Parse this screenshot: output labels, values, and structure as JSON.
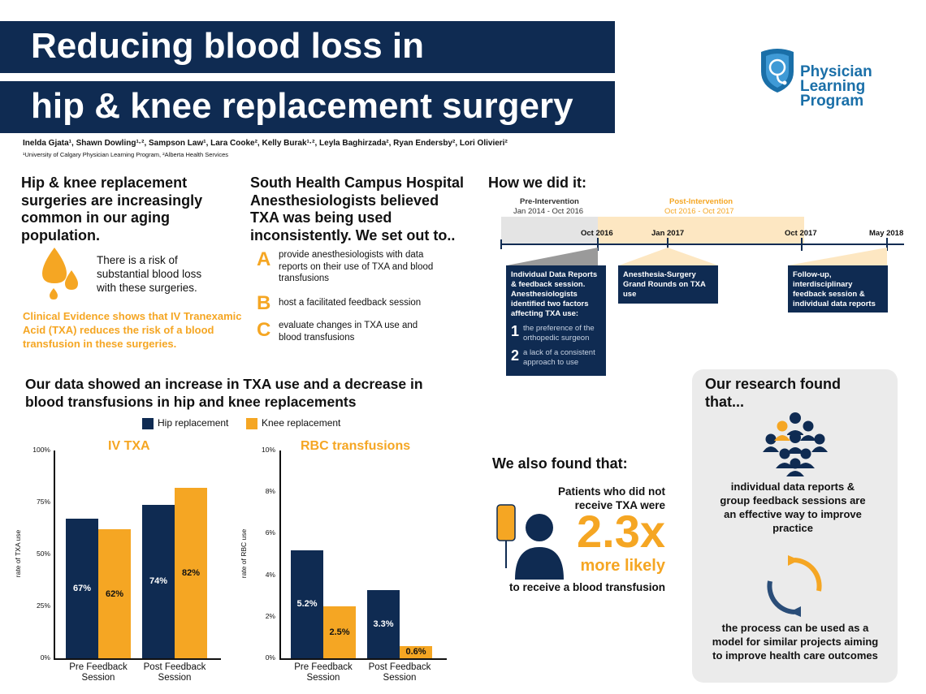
{
  "title": {
    "line1": "Reducing blood loss in",
    "line2": "hip & knee replacement surgery"
  },
  "authors": "Inelda Gjata¹, Shawn Dowling¹·², Sampson Law¹, Lara Cooke², Kelly Burak¹·², Leyla Baghirzada², Ryan Endersby², Lori Olivieri²",
  "affiliations": "¹University of Calgary Physician Learning Program, ²Alberta Health Services",
  "logo": {
    "line1": "Physician",
    "line2": "Learning",
    "line3": "Program",
    "icon": "stethoscope-shield-icon",
    "color": "#1a6fa8"
  },
  "colors": {
    "navy": "#0f2b52",
    "orange": "#f5a623",
    "panel": "#ebebeb"
  },
  "intro": {
    "heading": "Hip & knee replacement surgeries are increasingly common in our aging population.",
    "risk_text": "There is a risk of substantial blood loss with these surgeries.",
    "clinical": "Clinical Evidence shows that IV Tranexamic Acid (TXA) reduces the risk of a blood transfusion in these surgeries.",
    "icon": "blood-drops-icon"
  },
  "hospital": {
    "heading": "South Health Campus Hospital Anesthesiologists believed TXA was being used inconsistently. We set out to..",
    "items": [
      {
        "letter": "A",
        "text": "provide anesthesiologists with data reports on their use of TXA and blood transfusions"
      },
      {
        "letter": "B",
        "text": "host a facilitated feedback session"
      },
      {
        "letter": "C",
        "text": "evaluate changes in TXA use and blood transfusions"
      }
    ]
  },
  "how": {
    "heading": "How we did it:",
    "pre_label": "Pre-Intervention",
    "pre_range": "Jan 2014 - Oct 2016",
    "post_label": "Post-Intervention",
    "post_range": "Oct 2016 - Oct 2017",
    "dates": [
      "Oct 2016",
      "Jan 2017",
      "Oct 2017",
      "May 2018"
    ],
    "box1": "Individual Data Reports & feedback session. Anesthesiologists identified two factors affecting TXA use:",
    "factors": [
      {
        "num": "1",
        "text": "the preference of the orthopedic surgeon"
      },
      {
        "num": "2",
        "text": "a lack of a consistent approach to use"
      }
    ],
    "box2": "Anesthesia-Surgery Grand Rounds on TXA use",
    "box3": "Follow-up, interdisciplinary feedback session & individual data reports"
  },
  "data_section": {
    "heading": "Our data showed an increase in TXA use and a decrease in blood transfusions in hip and knee replacements",
    "legend": [
      "Hip replacement",
      "Knee replacement"
    ]
  },
  "chart_data": [
    {
      "type": "bar",
      "title": "IV TXA",
      "ylabel": "rate of TXA use",
      "categories": [
        "Pre Feedback Session",
        "Post Feedback Session"
      ],
      "series": [
        {
          "name": "Hip replacement",
          "values": [
            67,
            74
          ],
          "labels": [
            "67%",
            "74%"
          ]
        },
        {
          "name": "Knee replacement",
          "values": [
            62,
            82
          ],
          "labels": [
            "62%",
            "82%"
          ]
        }
      ],
      "ylim": [
        0,
        100
      ],
      "yticks": [
        "0%",
        "25%",
        "50%",
        "75%",
        "100%"
      ]
    },
    {
      "type": "bar",
      "title": "RBC transfusions",
      "ylabel": "rate of RBC use",
      "categories": [
        "Pre Feedback Session",
        "Post Feedback Session"
      ],
      "series": [
        {
          "name": "Hip replacement",
          "values": [
            5.2,
            3.3
          ],
          "labels": [
            "5.2%",
            "3.3%"
          ]
        },
        {
          "name": "Knee replacement",
          "values": [
            2.5,
            0.6
          ],
          "labels": [
            "2.5%",
            "0.6%"
          ]
        }
      ],
      "ylim": [
        0,
        10
      ],
      "yticks": [
        "0%",
        "2%",
        "4%",
        "6%",
        "8%",
        "10%"
      ]
    }
  ],
  "also": {
    "heading": "We also found that:",
    "line1": "Patients who did not",
    "line2": "receive TXA were",
    "big": "2.3x",
    "more": "more likely",
    "line3": "to receive a blood transfusion",
    "icon": "iv-bag-patient-icon"
  },
  "research": {
    "heading": "Our research found that...",
    "finding1": "individual data reports & group feedback sessions are an effective way to improve practice",
    "finding2": "the process can be used as a model for similar projects aiming to improve health care outcomes",
    "icon1": "group-people-icon",
    "icon2": "cycle-arrows-icon"
  }
}
